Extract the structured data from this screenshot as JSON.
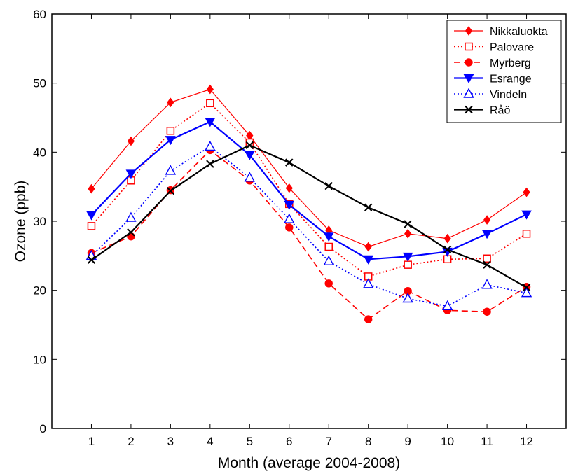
{
  "chart_data": {
    "type": "line",
    "title": "",
    "xlabel": "Month (average 2004-2008)",
    "ylabel": "Ozone (ppb)",
    "x": [
      1,
      2,
      3,
      4,
      5,
      6,
      7,
      8,
      9,
      10,
      11,
      12
    ],
    "xlim": [
      0,
      13
    ],
    "ylim": [
      0,
      60
    ],
    "yticks": [
      0,
      10,
      20,
      30,
      40,
      50,
      60
    ],
    "xticks": [
      1,
      2,
      3,
      4,
      5,
      6,
      7,
      8,
      9,
      10,
      11,
      12
    ],
    "grid": false,
    "legend_position": "top-right",
    "series": [
      {
        "name": "Nikkaluokta",
        "color": "#ff0000",
        "dash": "solid",
        "marker": "diamond-filled",
        "values": [
          34.7,
          41.6,
          47.2,
          49.1,
          42.4,
          34.8,
          28.7,
          26.3,
          28.2,
          27.5,
          30.2,
          34.2
        ]
      },
      {
        "name": "Palovare",
        "color": "#ff0000",
        "dash": "dotted",
        "marker": "square-open",
        "values": [
          29.3,
          35.9,
          43.1,
          47.1,
          41.4,
          32.5,
          26.3,
          22.0,
          23.7,
          24.5,
          24.6,
          28.2
        ]
      },
      {
        "name": "Myrberg",
        "color": "#ff0000",
        "dash": "dashed",
        "marker": "circle-filled",
        "values": [
          25.4,
          27.8,
          34.5,
          40.3,
          35.9,
          29.1,
          21.0,
          15.8,
          19.9,
          17.1,
          16.9,
          20.5
        ]
      },
      {
        "name": "Esrange",
        "color": "#0000ff",
        "dash": "solid-thick",
        "marker": "triangle-down-filled",
        "values": [
          30.9,
          36.9,
          41.8,
          44.4,
          39.6,
          32.4,
          27.8,
          24.5,
          24.9,
          25.6,
          28.2,
          31.0
        ]
      },
      {
        "name": "Vindeln",
        "color": "#0000ff",
        "dash": "dotted",
        "marker": "triangle-up-open",
        "values": [
          25.0,
          30.5,
          37.3,
          40.8,
          36.3,
          30.3,
          24.2,
          20.9,
          18.8,
          17.7,
          20.8,
          19.6
        ]
      },
      {
        "name": "Råö",
        "color": "#000000",
        "dash": "solid-thick",
        "marker": "x",
        "values": [
          24.4,
          28.4,
          34.4,
          38.3,
          41.0,
          38.5,
          35.1,
          32.0,
          29.6,
          25.9,
          23.7,
          20.4
        ]
      }
    ]
  }
}
